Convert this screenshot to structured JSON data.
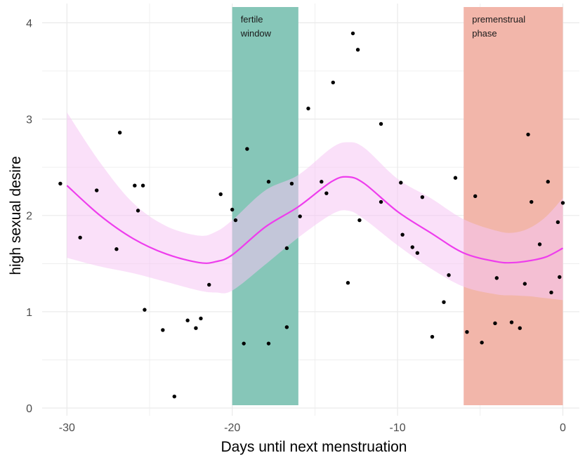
{
  "chart_data": {
    "type": "scatter",
    "xlabel": "Days until next menstruation",
    "ylabel": "high sexual desire",
    "xlim": [
      -31.5,
      1.0
    ],
    "ylim": [
      -0.08,
      4.2
    ],
    "x_ticks": [
      -30,
      -20,
      -10,
      0
    ],
    "x_tick_labels": [
      "-30",
      "-20",
      "-10",
      "0"
    ],
    "y_ticks": [
      0,
      1,
      2,
      3,
      4
    ],
    "y_tick_labels": [
      "0",
      "1",
      "2",
      "3",
      "4"
    ],
    "grid": true,
    "regions": [
      {
        "label_lines": [
          "fertile",
          "window"
        ],
        "x_start": -20,
        "x_end": -16,
        "color": "#86c6b8"
      },
      {
        "label_lines": [
          "premenstrual",
          "phase"
        ],
        "x_start": -6,
        "x_end": 0,
        "color": "#f2b6aa"
      }
    ],
    "points": [
      {
        "x": -30.4,
        "y": 2.33
      },
      {
        "x": -29.2,
        "y": 1.77
      },
      {
        "x": -28.2,
        "y": 2.26
      },
      {
        "x": -27.0,
        "y": 1.65
      },
      {
        "x": -26.8,
        "y": 2.86
      },
      {
        "x": -25.9,
        "y": 2.31
      },
      {
        "x": -25.7,
        "y": 2.05
      },
      {
        "x": -25.4,
        "y": 2.31
      },
      {
        "x": -25.3,
        "y": 1.02
      },
      {
        "x": -24.2,
        "y": 0.81
      },
      {
        "x": -23.5,
        "y": 0.12
      },
      {
        "x": -22.7,
        "y": 0.91
      },
      {
        "x": -22.2,
        "y": 0.83
      },
      {
        "x": -21.9,
        "y": 0.93
      },
      {
        "x": -21.4,
        "y": 1.28
      },
      {
        "x": -20.7,
        "y": 2.22
      },
      {
        "x": -20.0,
        "y": 2.06
      },
      {
        "x": -19.8,
        "y": 1.95
      },
      {
        "x": -19.3,
        "y": 0.67
      },
      {
        "x": -19.1,
        "y": 2.69
      },
      {
        "x": -17.8,
        "y": 2.35
      },
      {
        "x": -17.8,
        "y": 0.67
      },
      {
        "x": -16.7,
        "y": 1.66
      },
      {
        "x": -16.7,
        "y": 0.84
      },
      {
        "x": -16.4,
        "y": 2.33
      },
      {
        "x": -15.9,
        "y": 1.99
      },
      {
        "x": -15.4,
        "y": 3.11
      },
      {
        "x": -14.6,
        "y": 2.35
      },
      {
        "x": -14.3,
        "y": 2.23
      },
      {
        "x": -13.9,
        "y": 3.38
      },
      {
        "x": -13.0,
        "y": 1.3
      },
      {
        "x": -12.7,
        "y": 3.89
      },
      {
        "x": -12.4,
        "y": 3.72
      },
      {
        "x": -12.3,
        "y": 1.95
      },
      {
        "x": -11.0,
        "y": 2.95
      },
      {
        "x": -11.0,
        "y": 2.14
      },
      {
        "x": -9.8,
        "y": 2.34
      },
      {
        "x": -9.7,
        "y": 1.8
      },
      {
        "x": -9.1,
        "y": 1.67
      },
      {
        "x": -8.8,
        "y": 1.61
      },
      {
        "x": -8.5,
        "y": 2.19
      },
      {
        "x": -7.9,
        "y": 0.74
      },
      {
        "x": -7.2,
        "y": 1.1
      },
      {
        "x": -6.9,
        "y": 1.38
      },
      {
        "x": -6.5,
        "y": 2.39
      },
      {
        "x": -5.8,
        "y": 0.79
      },
      {
        "x": -5.3,
        "y": 2.2
      },
      {
        "x": -4.9,
        "y": 0.68
      },
      {
        "x": -4.1,
        "y": 0.88
      },
      {
        "x": -4.0,
        "y": 1.35
      },
      {
        "x": -3.1,
        "y": 0.89
      },
      {
        "x": -2.6,
        "y": 0.83
      },
      {
        "x": -2.3,
        "y": 1.29
      },
      {
        "x": -2.1,
        "y": 2.84
      },
      {
        "x": -1.9,
        "y": 2.14
      },
      {
        "x": -1.4,
        "y": 1.7
      },
      {
        "x": -0.9,
        "y": 2.35
      },
      {
        "x": -0.7,
        "y": 1.2
      },
      {
        "x": -0.3,
        "y": 1.93
      },
      {
        "x": -0.2,
        "y": 1.36
      },
      {
        "x": 0.0,
        "y": 2.13
      }
    ],
    "smooth_line": {
      "color": "#ee3ded",
      "band_color": "#f6c7f4",
      "points": [
        {
          "x": -30,
          "y": 2.31,
          "lo": 1.56,
          "hi": 3.07
        },
        {
          "x": -28,
          "y": 2.0,
          "lo": 1.47,
          "hi": 2.55
        },
        {
          "x": -26,
          "y": 1.76,
          "lo": 1.4,
          "hi": 2.13
        },
        {
          "x": -24,
          "y": 1.6,
          "lo": 1.31,
          "hi": 1.89
        },
        {
          "x": -22,
          "y": 1.51,
          "lo": 1.22,
          "hi": 1.79
        },
        {
          "x": -21,
          "y": 1.52,
          "lo": 1.2,
          "hi": 1.83
        },
        {
          "x": -20,
          "y": 1.59,
          "lo": 1.22,
          "hi": 1.95
        },
        {
          "x": -18,
          "y": 1.88,
          "lo": 1.49,
          "hi": 2.26
        },
        {
          "x": -16,
          "y": 2.09,
          "lo": 1.77,
          "hi": 2.42
        },
        {
          "x": -14,
          "y": 2.35,
          "lo": 2.01,
          "hi": 2.7
        },
        {
          "x": -13,
          "y": 2.4,
          "lo": 2.05,
          "hi": 2.76
        },
        {
          "x": -12,
          "y": 2.33,
          "lo": 1.96,
          "hi": 2.7
        },
        {
          "x": -10,
          "y": 2.04,
          "lo": 1.69,
          "hi": 2.38
        },
        {
          "x": -8,
          "y": 1.82,
          "lo": 1.45,
          "hi": 2.18
        },
        {
          "x": -6,
          "y": 1.61,
          "lo": 1.26,
          "hi": 1.96
        },
        {
          "x": -4,
          "y": 1.52,
          "lo": 1.18,
          "hi": 1.84
        },
        {
          "x": -3,
          "y": 1.51,
          "lo": 1.17,
          "hi": 1.82
        },
        {
          "x": -2,
          "y": 1.53,
          "lo": 1.16,
          "hi": 1.87
        },
        {
          "x": -1,
          "y": 1.57,
          "lo": 1.14,
          "hi": 1.99
        },
        {
          "x": 0,
          "y": 1.66,
          "lo": 1.12,
          "hi": 2.18
        }
      ]
    },
    "point_color": "#000000",
    "grid_color": "#ebebeb"
  }
}
